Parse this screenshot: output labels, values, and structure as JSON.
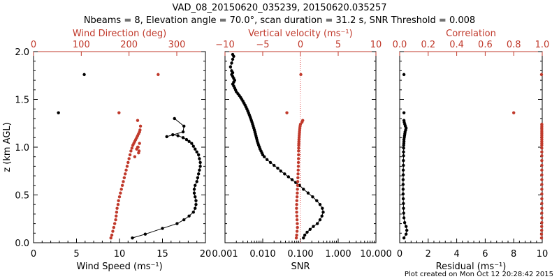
{
  "title": {
    "line1": "VAD_08_20150620_035239, 20150620.035257",
    "line2": "Nbeams = 8, Elevation angle = 70.0°, scan duration = 31.2 s, SNR Threshold = 0.008"
  },
  "footer": "Plot created on Mon Oct 12 20:28:42 2015",
  "colors": {
    "black": "#000000",
    "red": "#c0392b",
    "redline": "#e05050"
  },
  "chart_data": [
    {
      "id": "panel1",
      "type": "scatter",
      "ylabel": "z (km AGL)",
      "ylim": [
        0,
        2
      ],
      "yticks": [
        "0.0",
        "0.5",
        "1.0",
        "1.5",
        "2.0"
      ],
      "xlabel": "Wind Speed (ms⁻¹)",
      "xlim": [
        0,
        20
      ],
      "xticks": [
        "0",
        "5",
        "10",
        "15",
        "20"
      ],
      "x2label": "Wind Direction (deg)",
      "x2lim": [
        0,
        360
      ],
      "x2ticks": [
        "0",
        "100",
        "200",
        "300"
      ],
      "series": [
        {
          "axis": "bottom",
          "color": "black",
          "line": true,
          "x": [
            11.5,
            13.0,
            15.0,
            16.7,
            17.5,
            18.1,
            18.6,
            18.8,
            18.9,
            18.9,
            18.8,
            18.7,
            18.7,
            18.8,
            19.0,
            19.1,
            19.2,
            19.3,
            19.4,
            19.4,
            19.3,
            19.2,
            19.0,
            18.8,
            18.6,
            18.4,
            18.1,
            17.8,
            17.4,
            16.8,
            16.2,
            15.5,
            17.4,
            17.5,
            16.4
          ],
          "y": [
            0.05,
            0.09,
            0.15,
            0.2,
            0.24,
            0.28,
            0.32,
            0.36,
            0.4,
            0.44,
            0.48,
            0.52,
            0.56,
            0.6,
            0.64,
            0.68,
            0.72,
            0.76,
            0.8,
            0.84,
            0.88,
            0.92,
            0.95,
            0.98,
            1.01,
            1.04,
            1.06,
            1.08,
            1.1,
            1.12,
            1.13,
            1.11,
            1.16,
            1.22,
            1.3
          ]
        },
        {
          "axis": "bottom",
          "color": "black",
          "line": false,
          "x": [
            2.9,
            5.9
          ],
          "y": [
            1.36,
            1.76
          ]
        },
        {
          "axis": "top",
          "color": "red",
          "line": false,
          "x": [
            162,
            164,
            166,
            168,
            170,
            172,
            173,
            174,
            175,
            177,
            178,
            180,
            182,
            184,
            186,
            188,
            190,
            192,
            194,
            196,
            198,
            200,
            202,
            204,
            206,
            208,
            210,
            212,
            214,
            216,
            218,
            220,
            222,
            223,
            224,
            222,
            219,
            221,
            220,
            218,
            216,
            212,
            218,
            179,
            261
          ],
          "y": [
            0.05,
            0.08,
            0.12,
            0.16,
            0.2,
            0.24,
            0.28,
            0.32,
            0.36,
            0.4,
            0.44,
            0.48,
            0.52,
            0.56,
            0.6,
            0.64,
            0.68,
            0.72,
            0.76,
            0.8,
            0.84,
            0.88,
            0.92,
            0.96,
            0.99,
            1.02,
            1.04,
            1.06,
            1.08,
            1.1,
            1.12,
            1.14,
            1.16,
            1.18,
            1.22,
            1.04,
            1.0,
            0.96,
            0.94,
            1.0,
            0.98,
            0.9,
            1.28,
            1.36,
            1.76
          ]
        }
      ]
    },
    {
      "id": "panel2",
      "type": "scatter",
      "xlabel": "SNR",
      "xscale": "log",
      "xlim": [
        0.001,
        10
      ],
      "xticks": [
        "0.001",
        "0.010",
        "0.100",
        "1.000",
        "10.000"
      ],
      "x2label": "Vertical velocity (ms⁻¹)",
      "x2lim": [
        -10,
        10
      ],
      "x2ticks": [
        "−10",
        "−5",
        "0",
        "5",
        "10"
      ],
      "ylim": [
        0,
        2
      ],
      "series": [
        {
          "axis": "bottom",
          "color": "black",
          "line": true,
          "x": [
            0.12,
            0.13,
            0.15,
            0.18,
            0.22,
            0.28,
            0.33,
            0.37,
            0.4,
            0.38,
            0.33,
            0.27,
            0.21,
            0.16,
            0.12,
            0.095,
            0.075,
            0.06,
            0.048,
            0.038,
            0.03,
            0.025,
            0.02,
            0.016,
            0.013,
            0.011,
            0.01,
            0.0095,
            0.009,
            0.0085,
            0.0082,
            0.0078,
            0.0075,
            0.0072,
            0.007,
            0.0068,
            0.0066,
            0.0064,
            0.0062,
            0.006,
            0.0058,
            0.0056,
            0.0054,
            0.0052,
            0.005,
            0.0048,
            0.0046,
            0.0044,
            0.0042,
            0.004,
            0.0038,
            0.0036,
            0.0034,
            0.0032,
            0.003,
            0.0028,
            0.0026,
            0.0024,
            0.0022,
            0.002,
            0.0019,
            0.0018,
            0.0017,
            0.0016,
            0.0017,
            0.0018,
            0.0017,
            0.0016,
            0.0015,
            0.0016,
            0.0015,
            0.0014,
            0.0015,
            0.0016,
            0.0017,
            0.0016
          ],
          "y": [
            0.05,
            0.08,
            0.11,
            0.14,
            0.17,
            0.2,
            0.24,
            0.28,
            0.32,
            0.36,
            0.4,
            0.44,
            0.48,
            0.52,
            0.56,
            0.6,
            0.63,
            0.66,
            0.69,
            0.72,
            0.75,
            0.78,
            0.81,
            0.84,
            0.87,
            0.9,
            0.92,
            0.94,
            0.96,
            0.98,
            1.0,
            1.02,
            1.04,
            1.06,
            1.08,
            1.1,
            1.12,
            1.14,
            1.16,
            1.18,
            1.2,
            1.22,
            1.24,
            1.26,
            1.28,
            1.3,
            1.32,
            1.34,
            1.36,
            1.38,
            1.4,
            1.42,
            1.44,
            1.46,
            1.48,
            1.5,
            1.52,
            1.54,
            1.56,
            1.58,
            1.6,
            1.62,
            1.64,
            1.66,
            1.68,
            1.7,
            1.72,
            1.74,
            1.76,
            1.78,
            1.8,
            1.84,
            1.88,
            1.92,
            1.95,
            1.97
          ]
        },
        {
          "axis": "top",
          "color": "red",
          "line": false,
          "x": [
            -0.55,
            -0.5,
            -0.45,
            -0.4,
            -0.42,
            -0.45,
            -0.48,
            -0.5,
            -0.52,
            -0.5,
            -0.48,
            -0.45,
            -0.42,
            -0.4,
            -0.38,
            -0.36,
            -0.34,
            -0.32,
            -0.3,
            -0.28,
            -0.27,
            -0.26,
            -0.25,
            -0.25,
            -0.24,
            -0.23,
            -0.22,
            -0.21,
            -0.2,
            -0.18,
            -0.16,
            -0.14,
            -0.12,
            -0.1,
            -0.08,
            -0.05,
            0.0,
            0.2,
            0.3,
            -1.8,
            0.05
          ],
          "y": [
            0.05,
            0.08,
            0.12,
            0.16,
            0.2,
            0.24,
            0.28,
            0.32,
            0.36,
            0.4,
            0.44,
            0.48,
            0.52,
            0.56,
            0.6,
            0.64,
            0.68,
            0.72,
            0.76,
            0.8,
            0.84,
            0.88,
            0.92,
            0.96,
            0.99,
            1.02,
            1.04,
            1.06,
            1.08,
            1.1,
            1.12,
            1.14,
            1.16,
            1.18,
            1.2,
            1.22,
            1.24,
            1.26,
            1.28,
            1.36,
            1.76
          ]
        },
        {
          "axis": "top",
          "color": "redline",
          "line": "dotted",
          "x": [
            0,
            0
          ],
          "y": [
            0,
            2
          ]
        }
      ]
    },
    {
      "id": "panel3",
      "type": "scatter",
      "xlabel": "Residual (ms⁻¹)",
      "xlim": [
        0,
        10
      ],
      "xticks": [
        "0",
        "2",
        "4",
        "6",
        "8",
        "10"
      ],
      "x2label": "Correlation",
      "x2lim": [
        0,
        1
      ],
      "x2ticks": [
        "0.0",
        "0.2",
        "0.4",
        "0.6",
        "0.8",
        "1.0"
      ],
      "ylim": [
        0,
        2
      ],
      "series": [
        {
          "axis": "bottom",
          "color": "black",
          "line": true,
          "x": [
            0.3,
            0.45,
            0.5,
            0.45,
            0.35,
            0.3,
            0.28,
            0.27,
            0.26,
            0.25,
            0.24,
            0.24,
            0.24,
            0.24,
            0.25,
            0.25,
            0.26,
            0.26,
            0.27,
            0.27,
            0.28,
            0.28,
            0.29,
            0.3,
            0.3,
            0.32,
            0.34,
            0.36,
            0.38,
            0.42,
            0.45,
            0.4,
            0.36,
            0.32,
            0.3
          ],
          "y": [
            0.05,
            0.09,
            0.13,
            0.17,
            0.21,
            0.26,
            0.31,
            0.36,
            0.41,
            0.46,
            0.51,
            0.56,
            0.61,
            0.66,
            0.71,
            0.76,
            0.81,
            0.86,
            0.91,
            0.95,
            0.99,
            1.02,
            1.04,
            1.06,
            1.08,
            1.1,
            1.12,
            1.14,
            1.16,
            1.18,
            1.2,
            1.22,
            1.24,
            1.26,
            1.28
          ]
        },
        {
          "axis": "bottom",
          "color": "black",
          "line": false,
          "x": [
            0.3,
            0.3
          ],
          "y": [
            1.36,
            1.76
          ]
        },
        {
          "axis": "top",
          "color": "red",
          "line": false,
          "x": [
            0.995,
            0.995,
            0.996,
            0.996,
            0.997,
            0.997,
            0.997,
            0.997,
            0.997,
            0.997,
            0.997,
            0.997,
            0.997,
            0.997,
            0.997,
            0.997,
            0.997,
            0.997,
            0.997,
            0.997,
            0.997,
            0.997,
            0.997,
            0.997,
            0.997,
            0.997,
            0.997,
            0.997,
            0.997,
            0.997,
            0.997,
            0.997,
            0.997,
            0.8,
            0.995
          ],
          "y": [
            0.05,
            0.09,
            0.13,
            0.17,
            0.21,
            0.26,
            0.31,
            0.36,
            0.41,
            0.46,
            0.51,
            0.56,
            0.61,
            0.66,
            0.71,
            0.76,
            0.81,
            0.86,
            0.91,
            0.95,
            0.99,
            1.02,
            1.04,
            1.06,
            1.08,
            1.1,
            1.12,
            1.14,
            1.16,
            1.18,
            1.2,
            1.22,
            1.24,
            1.36,
            1.76
          ]
        }
      ]
    }
  ]
}
